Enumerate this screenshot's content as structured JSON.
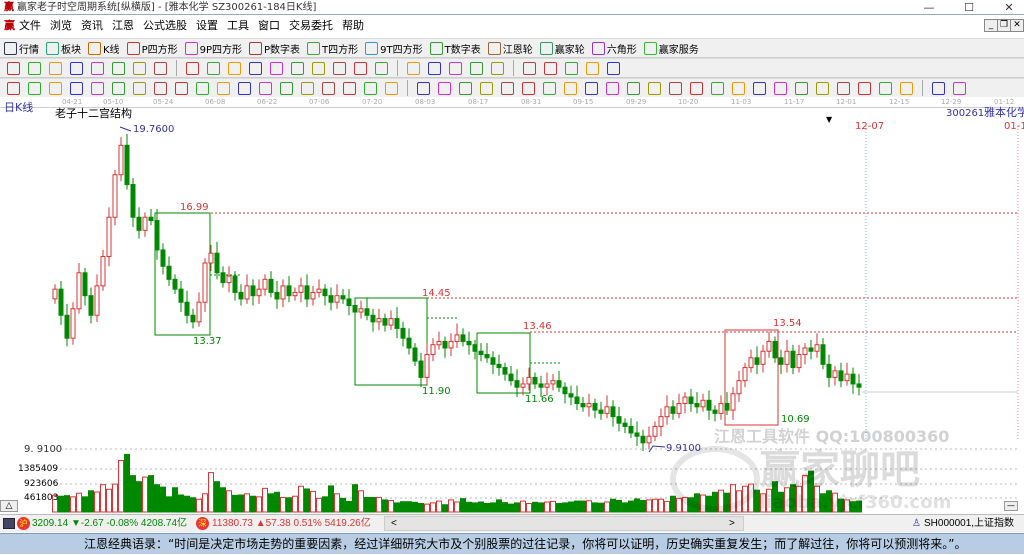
{
  "window": {
    "title": "赢家老子时空周期系统[纵横版] - [雅本化学  SZ300261-184日K线]",
    "minimize": "—",
    "maximize": "☐",
    "close": "✕"
  },
  "menu": [
    "文件",
    "浏览",
    "资讯",
    "江恩",
    "公式选股",
    "设置",
    "工具",
    "窗口",
    "交易委托",
    "帮助"
  ],
  "toolbar1": [
    {
      "label": "行情",
      "icon": "grid-icon",
      "color": "#335"
    },
    {
      "label": "板块",
      "icon": "blocks-icon",
      "color": "#2a7"
    },
    {
      "label": "K线",
      "icon": "candles-icon",
      "color": "#c60"
    },
    {
      "label": "P四方形",
      "icon": "p-square-icon",
      "color": "#c33"
    },
    {
      "label": "9P四方形",
      "icon": "9p-square-icon",
      "color": "#c3c"
    },
    {
      "label": "P数字表",
      "icon": "p-number-table-icon",
      "color": "#a33"
    },
    {
      "label": "T四方形",
      "icon": "t-square-icon",
      "color": "#3a3"
    },
    {
      "label": "9T四方形",
      "icon": "9t-square-icon",
      "color": "#39c"
    },
    {
      "label": "T数字表",
      "icon": "t-number-table-icon",
      "color": "#393"
    },
    {
      "label": "江恩轮",
      "icon": "gann-wheel-icon",
      "color": "#963"
    },
    {
      "label": "赢家轮",
      "icon": "winner-wheel-icon",
      "color": "#396"
    },
    {
      "label": "六角形",
      "icon": "hexagon-icon",
      "color": "#93c"
    },
    {
      "label": "赢家服务",
      "icon": "dollar-icon",
      "color": "#3b3"
    }
  ],
  "toolbar2_icons": [
    "period-dropdown-icon",
    "cycle-icon",
    "note-icon",
    "indicator-a-icon",
    "indicator-b-icon",
    "cursor-dropdown-icon",
    "overlay-icon",
    "flag-icon",
    "first-icon",
    "last-icon",
    "prev-icon",
    "next-icon",
    "zoom-in-icon",
    "zoom-out-icon",
    "left-right-icon",
    "expand-icon",
    "compress-icon",
    "shrink-icon",
    "hand-icon",
    "crosshair-icon",
    "line-icon",
    "tree-icon",
    "chart-b-icon",
    "calendar-icon",
    "calculator-icon",
    "report-icon",
    "save-icon",
    "print-icon"
  ],
  "toolbar3_icons": [
    "pen-icon",
    "parallel-icon",
    "fib-a-icon",
    "fib-b-icon",
    "fib-c-icon",
    "fib-d-icon",
    "brush-icon",
    "cycle-circle-icon",
    "lines-icon",
    "n2-icon",
    "angle-icon",
    "target-icon",
    "star-icon",
    "box-icon",
    "channel-icon",
    "gann-a-icon",
    "gann-b-icon",
    "grid-b-icon",
    "split-icon",
    "rect-icon",
    "fan-icon",
    "pattern-icon",
    "square-fan-icon",
    "ray-icon",
    "zigzag-icon",
    "table-a-icon",
    "table-b-icon",
    "wave-icon",
    "bars-icon",
    "percent-a-icon",
    "percent-icon",
    "ratio-icon",
    "gold-circle-icon",
    "gold-line-icon",
    "arrow-icon",
    "speed-a-icon",
    "speed-b-icon",
    "angle-b-icon",
    "f-icon",
    "angle-c-icon",
    "angle-d-icon",
    "angle-e-icon",
    "angle-f-icon",
    "yinyang-icon",
    "infinity-icon"
  ],
  "date_axis": [
    "04-21",
    "05-10",
    "05-24",
    "06-08",
    "06-22",
    "07-06",
    "07-20",
    "08-03",
    "08-17",
    "08-31",
    "09-15",
    "09-29",
    "10-20",
    "11-03",
    "11-17",
    "12-01",
    "12-15",
    "12-29",
    "01-12"
  ],
  "chart": {
    "period_label": "日K线",
    "indicator_name": "老子十二宫结构",
    "stock_code": "300261",
    "stock_name": "雅本化学",
    "cursor_date": "12-07",
    "right_date": "01-1",
    "price_axis_label": "9. 9100",
    "volume_axis": [
      "1385409",
      "923606",
      "461803"
    ],
    "high_label": "19.7600",
    "low_label": "9.9100",
    "levels": [
      "16.99",
      "13.37",
      "14.45",
      "11.90",
      "13.46",
      "11.66",
      "13.54",
      "10.69"
    ],
    "watermark_1": "江恩工具软件  QQ:100800360",
    "watermark_2": "赢家聊吧",
    "watermark_3": "liaoba.yjcf360.com",
    "colors": {
      "up": "#d33",
      "down": "#080",
      "box": "#080",
      "level_line": "#d33",
      "extreme": "#339"
    }
  },
  "chart_data": {
    "type": "candlestick",
    "y_range": [
      9.91,
      19.76
    ],
    "closes": [
      14.8,
      14.0,
      13.3,
      14.2,
      15.3,
      14.6,
      14.0,
      14.9,
      15.8,
      17.0,
      18.3,
      19.2,
      18.0,
      17.0,
      16.6,
      17.0,
      16.9,
      16.0,
      15.5,
      15.1,
      14.8,
      14.4,
      14.0,
      13.8,
      14.4,
      15.6,
      15.9,
      15.3,
      15.0,
      15.2,
      14.7,
      14.5,
      14.9,
      14.6,
      14.8,
      15.1,
      14.7,
      14.5,
      14.9,
      14.6,
      14.7,
      14.9,
      14.5,
      14.7,
      14.8,
      14.6,
      14.4,
      14.6,
      14.5,
      14.3,
      14.1,
      14.2,
      14.0,
      13.8,
      13.9,
      13.7,
      13.9,
      13.6,
      13.3,
      13.0,
      12.6,
      12.1,
      12.8,
      13.1,
      13.2,
      13.0,
      13.2,
      13.4,
      13.2,
      13.1,
      12.9,
      12.8,
      12.7,
      12.5,
      12.4,
      12.2,
      12.0,
      11.8,
      11.9,
      12.1,
      11.9,
      11.8,
      11.9,
      12.0,
      11.8,
      11.6,
      11.5,
      11.3,
      11.2,
      11.3,
      11.1,
      11.0,
      11.2,
      10.9,
      10.7,
      10.6,
      10.4,
      10.3,
      10.1,
      10.3,
      10.6,
      10.9,
      11.2,
      11.0,
      11.3,
      11.5,
      11.3,
      11.2,
      11.4,
      11.1,
      11.0,
      11.3,
      11.1,
      11.6,
      12.0,
      12.4,
      12.7,
      12.5,
      12.9,
      13.2,
      12.7,
      12.5,
      12.9,
      12.4,
      12.8,
      13.0,
      12.9,
      13.1,
      12.5,
      12.1,
      12.3,
      12.0,
      12.2,
      11.9,
      11.8
    ],
    "volumes": [
      550000,
      520000,
      540000,
      500000,
      620000,
      500000,
      700000,
      660000,
      900000,
      750000,
      920000,
      1700000,
      1900000,
      1200000,
      1000000,
      1150000,
      1200000,
      900000,
      820000,
      500000,
      800000,
      560000,
      520000,
      470000,
      420000,
      600000,
      1300000,
      1000000,
      800000,
      700000,
      550000,
      560000,
      600000,
      520000,
      500000,
      780000,
      600000,
      650000,
      480000,
      470000,
      520000,
      850000,
      760000,
      680000,
      450000,
      500000,
      860000,
      600000,
      450000,
      350000,
      900000,
      700000,
      480000,
      480000,
      480000,
      400000,
      380000,
      300000,
      340000,
      340000,
      320000,
      280000,
      260000,
      300000,
      360000,
      240000,
      400000,
      330000,
      440000,
      320000,
      300000,
      330000,
      280000,
      300000,
      400000,
      310000,
      260000,
      300000,
      360000,
      280000,
      320000,
      300000,
      330000,
      350000,
      280000,
      300000,
      330000,
      360000,
      360000,
      370000,
      300000,
      290000,
      330000,
      420000,
      380000,
      300000,
      360000,
      430000,
      380000,
      400000,
      420000,
      420000,
      350000,
      520000,
      450000,
      480000,
      470000,
      600000,
      560000,
      520000,
      650000,
      720000,
      620000,
      900000,
      700000,
      850000,
      920000,
      720000,
      600000,
      750000,
      1000000,
      650000,
      800000,
      900000,
      850000,
      1200000,
      1350000,
      850000,
      600000,
      700000,
      620000,
      420000,
      400000,
      340000,
      360000
    ],
    "volume_ticks": [
      461803,
      923606,
      1385409
    ]
  },
  "status": {
    "sh_index": "3209.14",
    "sh_change": "▼-2.67",
    "sh_pct": "-0.08%",
    "sh_amount": "4208.74亿",
    "sz_index": "11380.73",
    "sz_change": "▲57.38",
    "sz_pct": "0.51%",
    "sz_amount": "5419.26亿",
    "scroll_left": "<",
    "scroll_right": ">",
    "index_name": "SH000001,上证指数",
    "volume_toggle": "△",
    "min_btn": "—"
  },
  "quote": "江恩经典语录：“时间是决定市场走势的重要因素，经过详细研究大市及个别股票的过往记录，你将可以证明，历史确实重复发生；而了解过往，你将可以预测将来。”。"
}
